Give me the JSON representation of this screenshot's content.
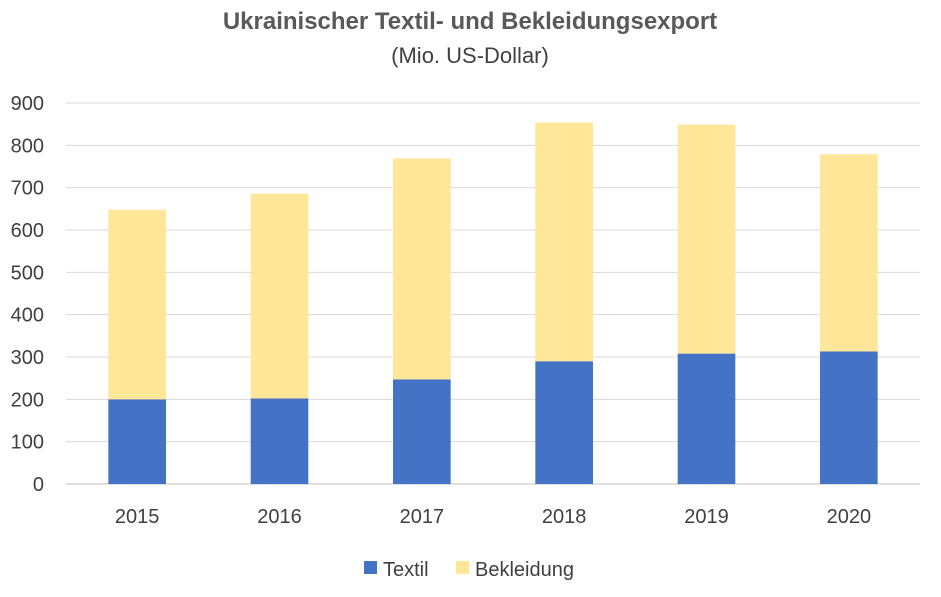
{
  "chart_data": {
    "type": "bar",
    "stacked": true,
    "title": "Ukrainischer Textil- und Bekleidungsexport",
    "subtitle": "(Mio. US-Dollar)",
    "xlabel": "",
    "ylabel": "",
    "categories": [
      "2015",
      "2016",
      "2017",
      "2018",
      "2019",
      "2020"
    ],
    "series": [
      {
        "name": "Textil",
        "color": "#4472C4",
        "values": [
          200,
          202,
          247,
          290,
          308,
          313
        ]
      },
      {
        "name": "Bekleidung",
        "color": "#FFE699",
        "values": [
          448,
          484,
          522,
          564,
          541,
          466
        ]
      }
    ],
    "ylim": [
      0,
      900
    ],
    "yticks": [
      "0",
      "100",
      "200",
      "300",
      "400",
      "500",
      "600",
      "700",
      "800",
      "900"
    ],
    "grid": true,
    "legend_position": "bottom"
  }
}
